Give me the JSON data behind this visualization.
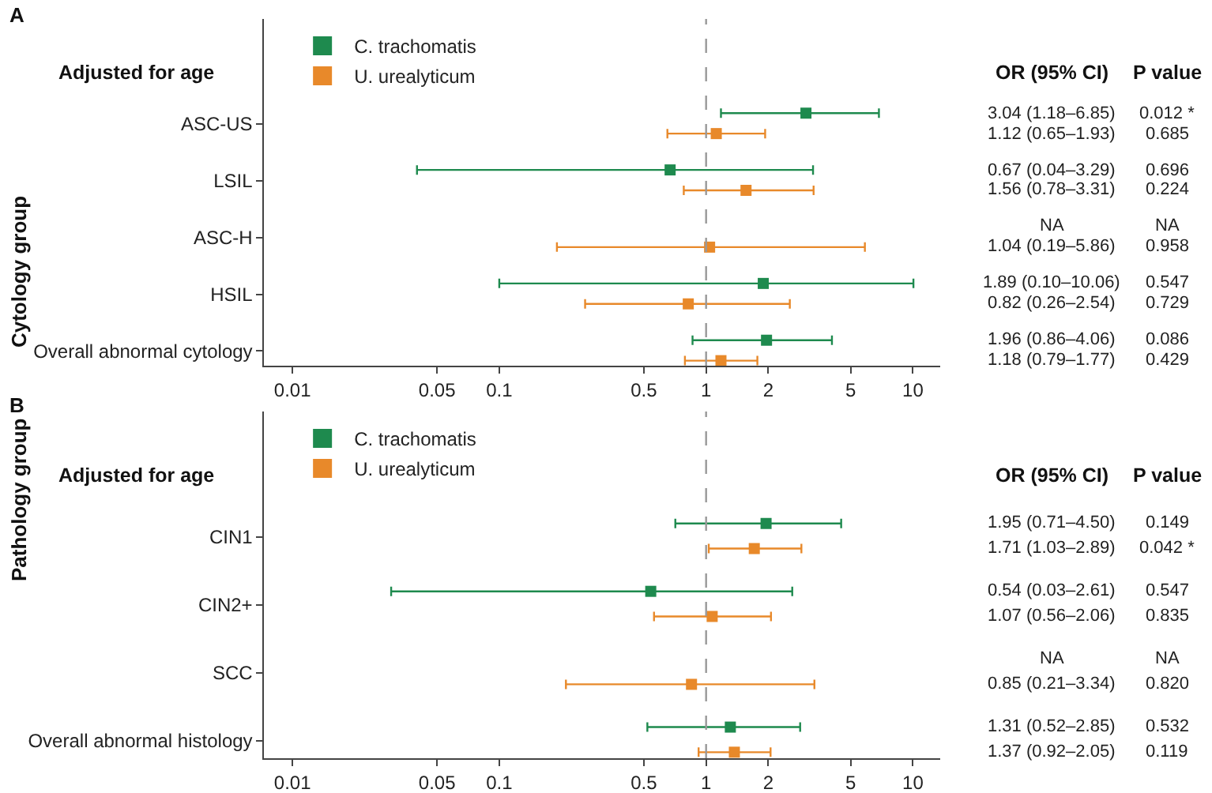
{
  "chart_data": [
    {
      "type": "scatter",
      "title": "A",
      "ylabel": "Cytology group",
      "orientation": "horizontal",
      "categories": [
        "ASC-US",
        "LSIL",
        "ASC-H",
        "HSIL",
        "Overall abnormal cytology"
      ],
      "series": [
        {
          "name": "C. trachomatis",
          "color": "#1e8a4e",
          "values": [
            3.04,
            0.67,
            null,
            1.89,
            1.96
          ],
          "errors": [
            [
              1.18,
              6.85
            ],
            [
              0.04,
              3.29
            ],
            null,
            [
              0.1,
              10.06
            ],
            [
              0.86,
              4.06
            ]
          ]
        },
        {
          "name": "U. urealyticum",
          "color": "#e8892a",
          "values": [
            1.12,
            1.56,
            1.04,
            0.82,
            1.18
          ],
          "errors": [
            [
              0.65,
              1.93
            ],
            [
              0.78,
              3.31
            ],
            [
              0.19,
              5.86
            ],
            [
              0.26,
              2.54
            ],
            [
              0.79,
              1.77
            ]
          ]
        }
      ],
      "annotations": [
        "Adjusted for age",
        "OR (95% CI)",
        "P value",
        "3.04 (1.18–6.85)",
        "0.012 *",
        "1.12 (0.65–1.93)",
        "0.685",
        "0.67 (0.04–3.29)",
        "0.696",
        "1.56 (0.78–3.31)",
        "0.224",
        "NA",
        "NA",
        "1.04 (0.19–5.86)",
        "0.958",
        "1.89 (0.10–10.06)",
        "0.547",
        "0.82 (0.26–2.54)",
        "0.729",
        "1.96 (0.86–4.06)",
        "0.086",
        "1.18 (0.79–1.77)",
        "0.429"
      ],
      "log": "x",
      "xlim": [
        0.0073,
        13.6
      ],
      "xticks": [
        0.01,
        0.05,
        0.1,
        0.5,
        1,
        2,
        5,
        10
      ],
      "ref_lines": [
        {
          "axis": "x",
          "value": 1,
          "color": "#999999",
          "line_style": "dashed"
        }
      ],
      "marker": "square",
      "legend": "top left"
    },
    {
      "type": "scatter",
      "title": "B",
      "ylabel": "Pathology group",
      "orientation": "horizontal",
      "categories": [
        "CIN1",
        "CIN2+",
        "SCC",
        "Overall abnormal histology"
      ],
      "series": [
        {
          "name": "C. trachomatis",
          "color": "#1e8a4e",
          "values": [
            1.95,
            0.54,
            null,
            1.31
          ],
          "errors": [
            [
              0.71,
              4.5
            ],
            [
              0.03,
              2.61
            ],
            null,
            [
              0.52,
              2.85
            ]
          ]
        },
        {
          "name": "U. urealyticum",
          "color": "#e8892a",
          "values": [
            1.71,
            1.07,
            0.85,
            1.37
          ],
          "errors": [
            [
              1.03,
              2.89
            ],
            [
              0.56,
              2.06
            ],
            [
              0.21,
              3.34
            ],
            [
              0.92,
              2.05
            ]
          ]
        }
      ],
      "annotations": [
        "Adjusted for age",
        "OR (95% CI)",
        "P value",
        "1.95 (0.71–4.50)",
        "0.149",
        "1.71 (1.03–2.89)",
        "0.042 *",
        "0.54 (0.03–2.61)",
        "0.547",
        "1.07 (0.56–2.06)",
        "0.835",
        "NA",
        "NA",
        "0.85 (0.21–3.34)",
        "0.820",
        "1.31 (0.52–2.85)",
        "0.532",
        "1.37 (0.92–2.05)",
        "0.119"
      ],
      "log": "x",
      "xlim": [
        0.0073,
        13.6
      ],
      "xticks": [
        0.01,
        0.05,
        0.1,
        0.5,
        1,
        2,
        5,
        10
      ],
      "ref_lines": [
        {
          "axis": "x",
          "value": 1,
          "color": "#999999",
          "line_style": "dashed"
        }
      ],
      "marker": "square",
      "legend": "top left"
    }
  ]
}
